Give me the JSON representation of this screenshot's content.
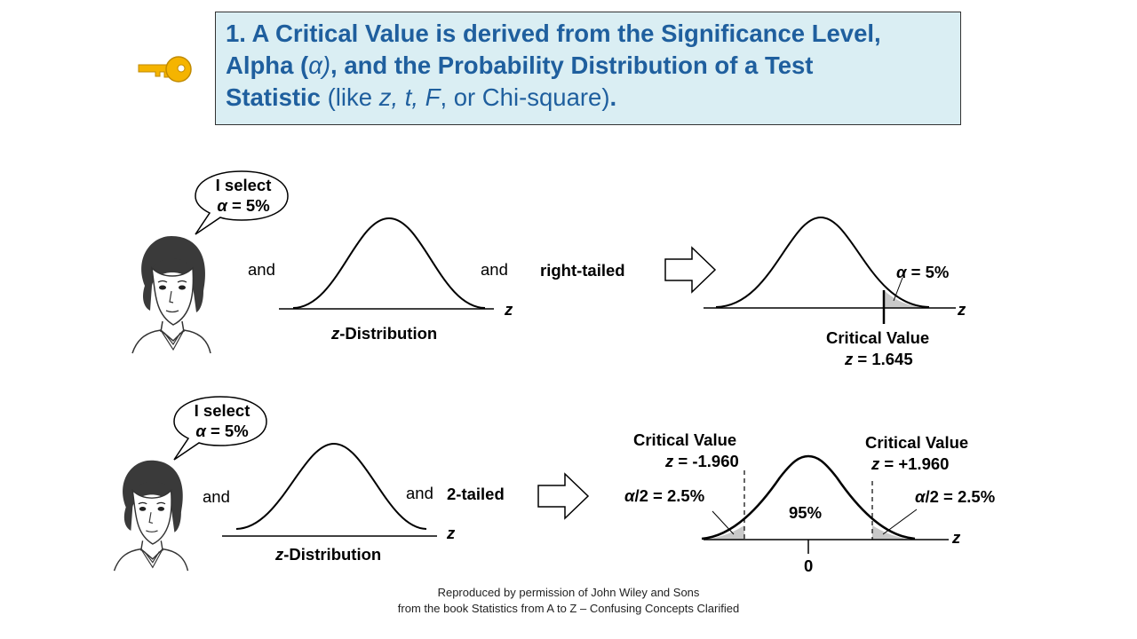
{
  "title": {
    "line1": "1. A Critical Value is derived from the Significance Level,",
    "line2_a": "Alpha (",
    "line2_alpha": "α)",
    "line2_b": ", and the Probability Distribution of a Test",
    "line3_a": "Statistic",
    "line3_b": " (like ",
    "line3_z": "z, t, F",
    "line3_c": ", or Chi-square)",
    "line3_d": "."
  },
  "row1": {
    "bubble_line1": "I select",
    "bubble_alpha": "α",
    "bubble_rest": " = 5%",
    "and1": "and",
    "and2": "and",
    "dist_italic": "z",
    "dist_rest": "-Distribution",
    "axis_z": "z",
    "tail_type": "right-tailed",
    "alpha_symbol": "α",
    "alpha_rest": " = 5%",
    "result_axis_z": "z",
    "critical_label": "Critical Value",
    "critical_z": "z",
    "critical_rest": " = 1.645"
  },
  "row2": {
    "bubble_line1": "I select",
    "bubble_alpha": "α",
    "bubble_rest": " = 5%",
    "and1": "and",
    "and2": "and",
    "tail_type": "2-tailed",
    "dist_italic": "z",
    "dist_rest": "-Distribution",
    "axis_z": "z",
    "left_critical_label": "Critical Value",
    "left_critical_z": "z",
    "left_critical_rest": " = -1.960",
    "right_critical_label": "Critical Value",
    "right_critical_z": "z",
    "right_critical_rest": " = +1.960",
    "left_alpha_sym": "α",
    "left_alpha_rest": "/2 = 2.5%",
    "right_alpha_sym": "α",
    "right_alpha_rest": "/2 = 2.5%",
    "center_pct": "95%",
    "zero": "0",
    "result_axis_z": "z"
  },
  "credit": {
    "line1": "Reproduced by permission of John Wiley and Sons",
    "line2": "from the book Statistics from A to Z – Confusing Concepts Clarified"
  },
  "colors": {
    "title_text": "#1f5f9e",
    "title_bg": "#daeef3",
    "key": "#f5b400",
    "tail_shade": "#c8c8c8"
  },
  "icons": [
    "key-icon",
    "speech-bubble",
    "woman-avatar",
    "arrow-right-icon"
  ]
}
